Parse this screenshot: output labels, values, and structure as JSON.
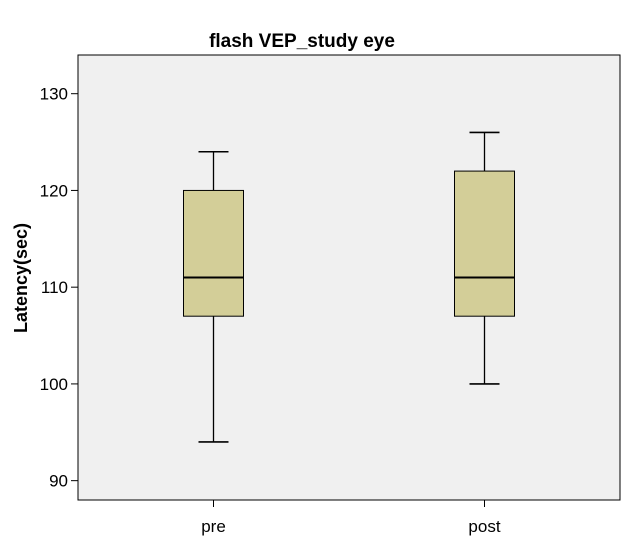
{
  "chart_data": {
    "type": "boxplot",
    "title": "flash VEP_study eye",
    "xlabel": "",
    "ylabel": "Latency(sec)",
    "categories": [
      "pre",
      "post"
    ],
    "boxes": [
      {
        "category": "pre",
        "min": 94,
        "q1": 107,
        "median": 111,
        "q3": 120,
        "max": 124
      },
      {
        "category": "post",
        "min": 100,
        "q1": 107,
        "median": 111,
        "q3": 122,
        "max": 126
      }
    ],
    "ylim": [
      88,
      134
    ],
    "yticks": [
      90,
      100,
      110,
      120,
      130
    ],
    "grid": false,
    "legend": "none",
    "colors": {
      "plot_background": "#f0f0f0",
      "box_fill": "#d3ce98",
      "line": "#000000"
    }
  }
}
